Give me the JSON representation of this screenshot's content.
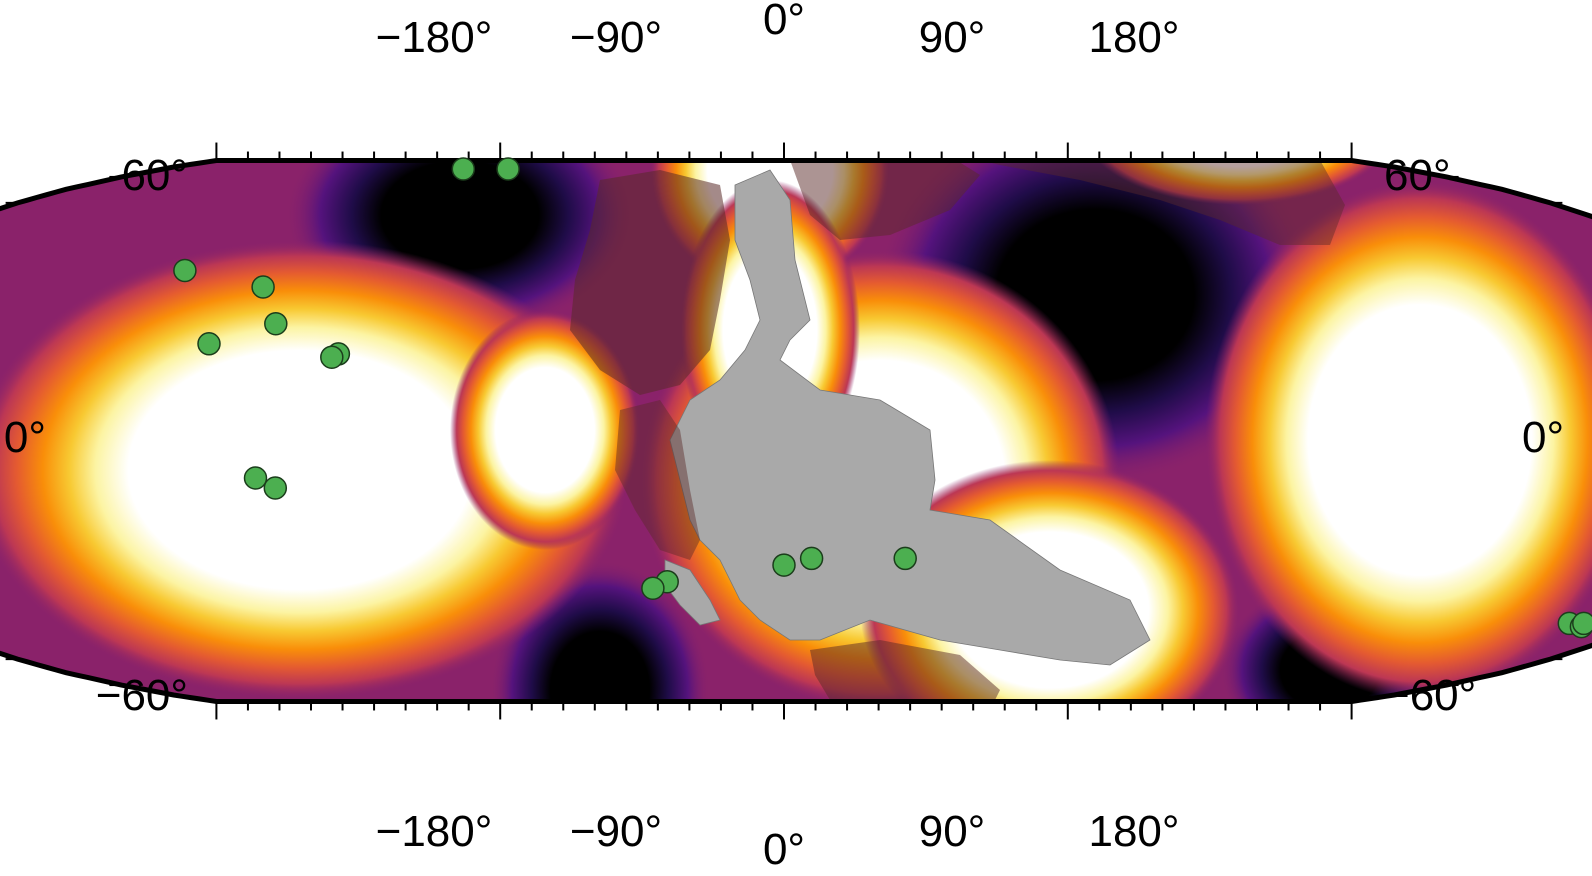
{
  "map": {
    "projection": "robinson",
    "colors": {
      "background": "#ffffff",
      "frame": "#000000",
      "continent_fill": "#a9a9a9",
      "marker_fill": "#4caf50",
      "marker_stroke": "#1b3d1b",
      "heat_palette": [
        "#000000",
        "#1f0c48",
        "#55137d",
        "#8a226a",
        "#bc3754",
        "#e45a31",
        "#f98e09",
        "#f8c932",
        "#fcf4a3",
        "#ffffff"
      ]
    },
    "top_axis_labels": [
      "−180°",
      "−90°",
      "0°",
      "90°",
      "180°"
    ],
    "bottom_axis_labels": [
      "−180°",
      "−90°",
      "0°",
      "90°",
      "180°"
    ],
    "left_axis_labels": [
      "60°",
      "0°",
      "−60°"
    ],
    "right_axis_labels": [
      "60°",
      "0°",
      "−60°"
    ],
    "layers": {
      "heat_field": "heat-field",
      "continents": "continent-shapes",
      "markers": "sample-sites"
    },
    "sample_sites": [
      {
        "lon": -93,
        "lat": 84
      },
      {
        "lon": -80,
        "lat": 84
      },
      {
        "lon": -115,
        "lat": 48
      },
      {
        "lon": -97,
        "lat": 43
      },
      {
        "lon": -90,
        "lat": 32
      },
      {
        "lon": -100,
        "lat": 26
      },
      {
        "lon": -77,
        "lat": 23
      },
      {
        "lon": -78,
        "lat": 22
      },
      {
        "lon": -90,
        "lat": -14
      },
      {
        "lon": -87,
        "lat": -17
      },
      {
        "lon": 5,
        "lat": -38
      },
      {
        "lon": 0,
        "lat": -40
      },
      {
        "lon": 22,
        "lat": -38
      },
      {
        "lon": -22,
        "lat": -45
      },
      {
        "lon": -25,
        "lat": -47
      },
      {
        "lon": 163,
        "lat": -58
      },
      {
        "lon": 167,
        "lat": -59
      },
      {
        "lon": 166,
        "lat": -58
      }
    ]
  }
}
